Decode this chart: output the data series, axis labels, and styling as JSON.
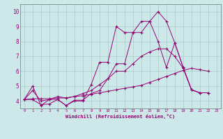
{
  "xlabel": "Windchill (Refroidissement éolien,°C)",
  "background_color": "#cde8e8",
  "grid_color": "#aacccc",
  "line_color": "#990077",
  "xlim": [
    -0.5,
    23.5
  ],
  "ylim": [
    3.5,
    10.5
  ],
  "xticks": [
    0,
    1,
    2,
    3,
    4,
    5,
    6,
    7,
    8,
    9,
    10,
    11,
    12,
    13,
    14,
    15,
    16,
    17,
    18,
    19,
    20,
    21,
    22,
    23
  ],
  "yticks": [
    4,
    5,
    6,
    7,
    8,
    9,
    10
  ],
  "series": [
    {
      "x": [
        0,
        1,
        2,
        3,
        4,
        5,
        6,
        7,
        8,
        9,
        10,
        11,
        12,
        13,
        14,
        15,
        16,
        17,
        18,
        19,
        20,
        21,
        22
      ],
      "y": [
        4.1,
        5.0,
        3.7,
        4.1,
        4.1,
        3.7,
        4.0,
        4.0,
        5.1,
        6.6,
        6.6,
        9.0,
        8.6,
        8.6,
        9.35,
        9.35,
        10.0,
        9.35,
        7.9,
        6.25,
        4.75,
        4.55,
        4.55
      ]
    },
    {
      "x": [
        0,
        1,
        2,
        3,
        4,
        5,
        6,
        7,
        8,
        9,
        10,
        11,
        12,
        13,
        14,
        15,
        16,
        17,
        18,
        19,
        20,
        21,
        22
      ],
      "y": [
        4.1,
        4.15,
        4.15,
        4.15,
        4.2,
        4.2,
        4.3,
        4.35,
        4.45,
        4.55,
        4.65,
        4.75,
        4.85,
        4.95,
        5.05,
        5.25,
        5.45,
        5.65,
        5.85,
        6.05,
        6.2,
        6.1,
        6.0
      ]
    },
    {
      "x": [
        0,
        1,
        2,
        3,
        4,
        5,
        6,
        7,
        8,
        9,
        10,
        11,
        12,
        13,
        14,
        15,
        16,
        17,
        18,
        19,
        20,
        21,
        22
      ],
      "y": [
        4.1,
        4.1,
        3.75,
        3.8,
        4.1,
        3.7,
        4.05,
        4.05,
        4.5,
        4.7,
        5.5,
        6.5,
        6.5,
        8.6,
        8.6,
        9.35,
        8.0,
        6.25,
        7.9,
        6.25,
        4.75,
        4.55,
        4.55
      ]
    },
    {
      "x": [
        0,
        1,
        2,
        3,
        4,
        5,
        6,
        7,
        8,
        9,
        10,
        11,
        12,
        13,
        14,
        15,
        16,
        17,
        18,
        19,
        20,
        21,
        22
      ],
      "y": [
        4.1,
        4.7,
        4.0,
        4.1,
        4.3,
        4.2,
        4.3,
        4.5,
        4.7,
        5.1,
        5.5,
        6.0,
        6.0,
        6.5,
        7.0,
        7.3,
        7.5,
        7.5,
        7.0,
        6.2,
        4.75,
        4.55,
        4.55
      ]
    }
  ]
}
